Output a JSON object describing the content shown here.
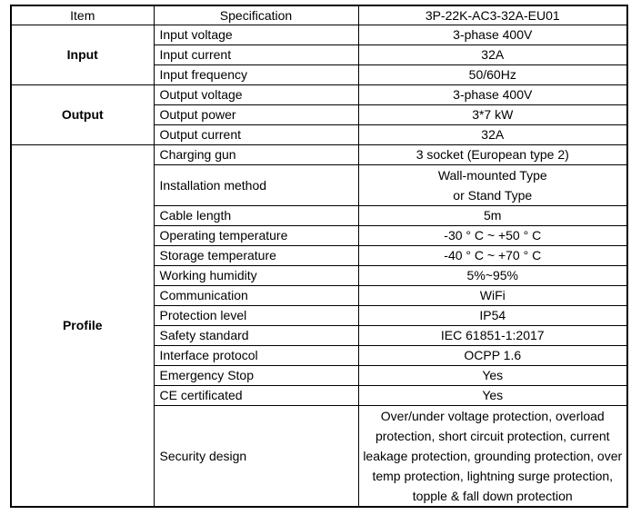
{
  "table": {
    "header": {
      "item": "Item",
      "specification": "Specification",
      "model": "3P-22K-AC3-32A-EU01"
    },
    "groups": [
      {
        "label": "Input",
        "rows": [
          {
            "spec": "Input voltage",
            "value": "3-phase 400V"
          },
          {
            "spec": "Input current",
            "value": "32A"
          },
          {
            "spec": "Input frequency",
            "value": "50/60Hz"
          }
        ]
      },
      {
        "label": "Output",
        "rows": [
          {
            "spec": "Output voltage",
            "value": "3-phase 400V"
          },
          {
            "spec": "Output power",
            "value": "3*7 kW"
          },
          {
            "spec": "Output current",
            "value": "32A"
          }
        ]
      },
      {
        "label": "Profile",
        "rows": [
          {
            "spec": "Charging gun",
            "value": "3 socket (European type 2)"
          },
          {
            "spec": "Installation method",
            "value_lines": [
              "Wall-mounted Type",
              "or Stand Type"
            ]
          },
          {
            "spec": "Cable length",
            "value": "5m"
          },
          {
            "spec": "Operating temperature",
            "value": "-30 ° C ~ +50 ° C"
          },
          {
            "spec": "Storage temperature",
            "value": "-40 ° C ~ +70 ° C"
          },
          {
            "spec": "Working humidity",
            "value": "5%~95%"
          },
          {
            "spec": "Communication",
            "value": "WiFi"
          },
          {
            "spec": "Protection level",
            "value": "IP54"
          },
          {
            "spec": "Safety standard",
            "value": "IEC 61851-1:2017"
          },
          {
            "spec": "Interface protocol",
            "value": "OCPP 1.6"
          },
          {
            "spec": "Emergency Stop",
            "value": "Yes"
          },
          {
            "spec": "CE certificated",
            "value": "Yes"
          },
          {
            "spec": "Security design",
            "value_lines": [
              "Over/under voltage protection, overload",
              "protection, short circuit protection, current",
              "leakage protection, grounding protection, over",
              "temp protection, lightning surge protection,",
              "topple & fall down protection"
            ]
          }
        ]
      }
    ]
  }
}
